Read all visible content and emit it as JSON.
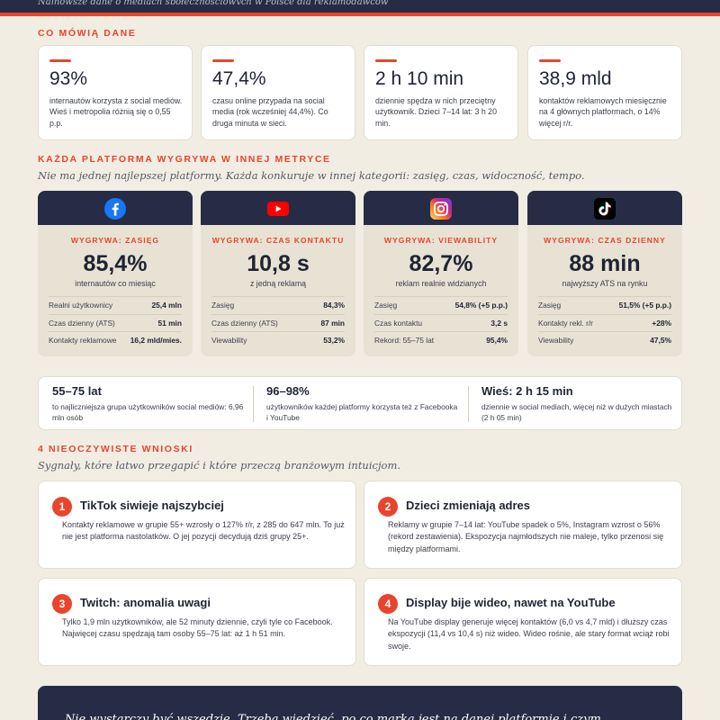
{
  "header": {
    "partial_text": "Najnowsze dane o mediach społecznościowych w Polsce dla reklamodawców"
  },
  "section1": {
    "label": "CO MÓWIĄ DANE"
  },
  "stats": [
    {
      "value": "93%",
      "desc": "internautów korzysta z social mediów. Wieś i metropolia różnią się o 0,55 p.p."
    },
    {
      "value": "47,4%",
      "desc": "czasu online przypada na social media (rok wcześniej 44,4%). Co druga minuta w sieci."
    },
    {
      "value": "2 h 10 min",
      "desc": "dziennie spędza w nich przeciętny użytkownik. Dzieci 7–14 lat: 3 h 20 min."
    },
    {
      "value": "38,9 mld",
      "desc": "kontaktów reklamowych miesięcznie na 4 głównych platformach, o 14% więcej r/r."
    }
  ],
  "section2": {
    "label": "KAŻDA PLATFORMA WYGRYWA W INNEJ METRYCE",
    "sub": "Nie ma jednej najlepszej platformy. Każda konkuruje w innej kategorii: zasięg, czas, widoczność, tempo."
  },
  "platforms": [
    {
      "icon": "facebook-icon",
      "win": "WYGRYWA: ZASIĘG",
      "big": "85,4%",
      "bigsub": "internautów co miesiąc",
      "rows": [
        {
          "k": "Realni użytkownicy",
          "v": "25,4 mln"
        },
        {
          "k": "Czas dzienny (ATS)",
          "v": "51 min"
        },
        {
          "k": "Kontakty reklamowe",
          "v": "16,2 mld/mies."
        }
      ]
    },
    {
      "icon": "youtube-icon",
      "win": "WYGRYWA: CZAS KONTAKTU",
      "big": "10,8 s",
      "bigsub": "z jedną reklamą",
      "rows": [
        {
          "k": "Zasięg",
          "v": "84,3%"
        },
        {
          "k": "Czas dzienny (ATS)",
          "v": "87 min"
        },
        {
          "k": "Viewability",
          "v": "53,2%"
        }
      ]
    },
    {
      "icon": "instagram-icon",
      "win": "WYGRYWA: VIEWABILITY",
      "big": "82,7%",
      "bigsub": "reklam realnie widzianych",
      "rows": [
        {
          "k": "Zasięg",
          "v": "54,8% (+5 p.p.)"
        },
        {
          "k": "Czas kontaktu",
          "v": "3,2 s"
        },
        {
          "k": "Rekord: 55–75 lat",
          "v": "95,4%"
        }
      ]
    },
    {
      "icon": "tiktok-icon",
      "win": "WYGRYWA: CZAS DZIENNY",
      "big": "88 min",
      "bigsub": "najwyższy ATS na rynku",
      "rows": [
        {
          "k": "Zasięg",
          "v": "51,5% (+5 p.p.)"
        },
        {
          "k": "Kontakty rekl. r/r",
          "v": "+28%"
        },
        {
          "k": "Viewability",
          "v": "47,5%"
        }
      ]
    }
  ],
  "strip": [
    {
      "h": "55–75 lat",
      "d": "to najliczniejsza grupa użytkowników social mediów: 6,96 mln osób"
    },
    {
      "h": "96–98%",
      "d": "użytkowników każdej platformy korzysta też z Facebooka i YouTube"
    },
    {
      "h": "Wieś: 2 h 15 min",
      "d": "dziennie w social mediach, więcej niż w dużych miastach (2 h 05 min)"
    }
  ],
  "section3": {
    "label": "4 NIEOCZYWISTE WNIOSKI",
    "sub": "Sygnały, które łatwo przegapić i które przeczą branżowym intuicjom."
  },
  "insights": [
    {
      "num": "1",
      "title": "TikTok siwieje najszybciej",
      "text": "Kontakty reklamowe w grupie 55+ wzrosły o 127% r/r, z 285 do 647 mln. To już nie jest platforma nastolatków. O jej pozycji decydują dziś grupy 25+."
    },
    {
      "num": "2",
      "title": "Dzieci zmieniają adres",
      "text": "Reklamy w grupie 7–14 lat: YouTube spadek o 5%, Instagram wzrost o 56% (rekord zestawienia). Ekspozycja najmłodszych nie maleje, tylko przenosi się między platformami."
    },
    {
      "num": "3",
      "title": "Twitch: anomalia uwagi",
      "text": "Tylko 1,9 mln użytkowników, ale 52 minuty dziennie, czyli tyle co Facebook. Najwięcej czasu spędzają tam osoby 55–75 lat: aż 1 h 51 min."
    },
    {
      "num": "4",
      "title": "Display bije wideo, nawet na YouTube",
      "text": "Na YouTube display generuje więcej kontaktów (6,0 vs 4,7 mld) i dłuższy czas ekspozycji (11,4 vs 10,4 s) niż wideo. Wideo rośnie, ale stary format wciąż robi swoje."
    }
  ],
  "footer": {
    "text": "Nie wystarczy być wszędzie. Trzeba wiedzieć, po co marka jest na danej platformie i czym"
  },
  "colors": {
    "accent": "#e8452c",
    "navy": "#262c45",
    "background": "#f2ede3",
    "card": "#ffffff",
    "platform_card": "#e8e2d4"
  }
}
